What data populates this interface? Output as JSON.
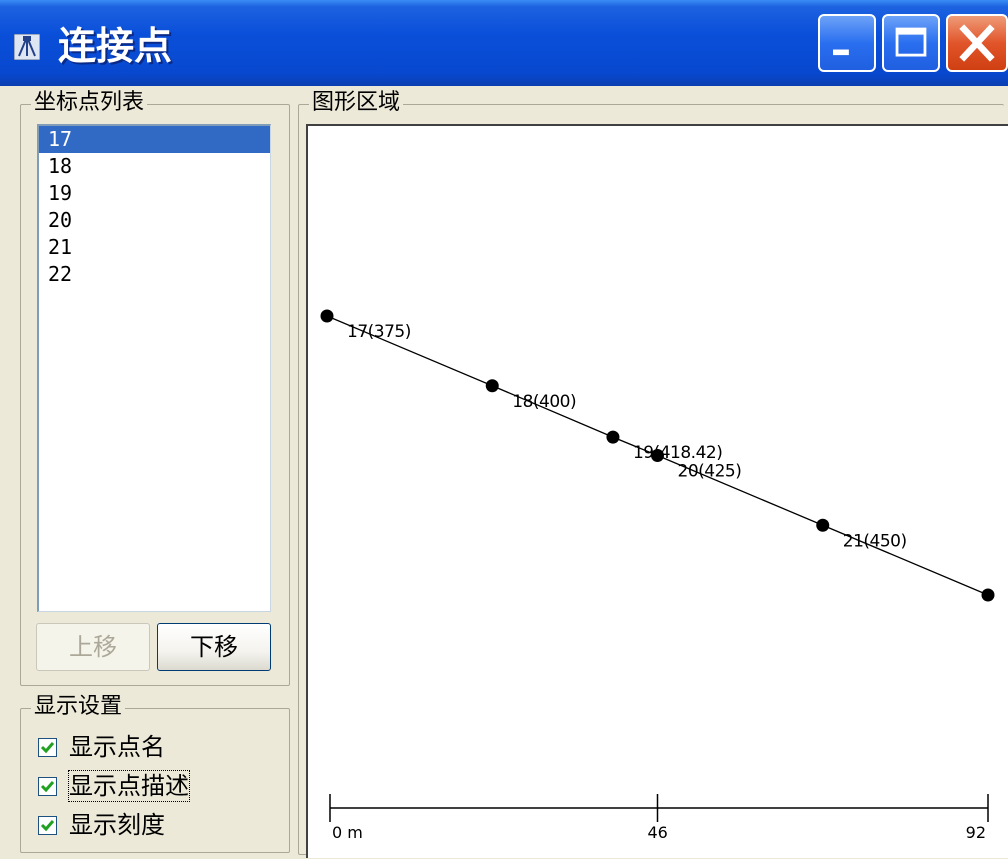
{
  "window": {
    "title": "连接点",
    "icon": "survey-instrument-icon",
    "controls": {
      "minimize": "minimize-icon",
      "maximize": "maximize-icon",
      "close": "close-icon"
    }
  },
  "point_list": {
    "title": "坐标点列表",
    "items": [
      "17",
      "18",
      "19",
      "20",
      "21",
      "22"
    ],
    "selected": "17",
    "move_up_label": "上移",
    "move_down_label": "下移"
  },
  "display_settings": {
    "title": "显示设置",
    "options": [
      {
        "label": "显示点名",
        "checked": true
      },
      {
        "label": "显示点描述",
        "checked": true
      },
      {
        "label": "显示刻度",
        "checked": true
      }
    ]
  },
  "graphic_area": {
    "title": "图形区域",
    "points": [
      {
        "name": "17",
        "label": "17(375)",
        "distance": 0,
        "elevation": 375
      },
      {
        "name": "18",
        "label": "18(400)",
        "distance": 23,
        "elevation": 400
      },
      {
        "name": "19",
        "label": "19(418.42)",
        "distance": 39.8,
        "elevation": 418.42
      },
      {
        "name": "20",
        "label": "20(425)",
        "distance": 46,
        "elevation": 425
      },
      {
        "name": "21",
        "label": "21(450)",
        "distance": 69,
        "elevation": 450
      },
      {
        "name": "22",
        "label": "",
        "distance": 92,
        "elevation": 475
      }
    ],
    "scale": {
      "labels": [
        "0 m",
        "46",
        "92"
      ],
      "max": 92
    }
  }
}
